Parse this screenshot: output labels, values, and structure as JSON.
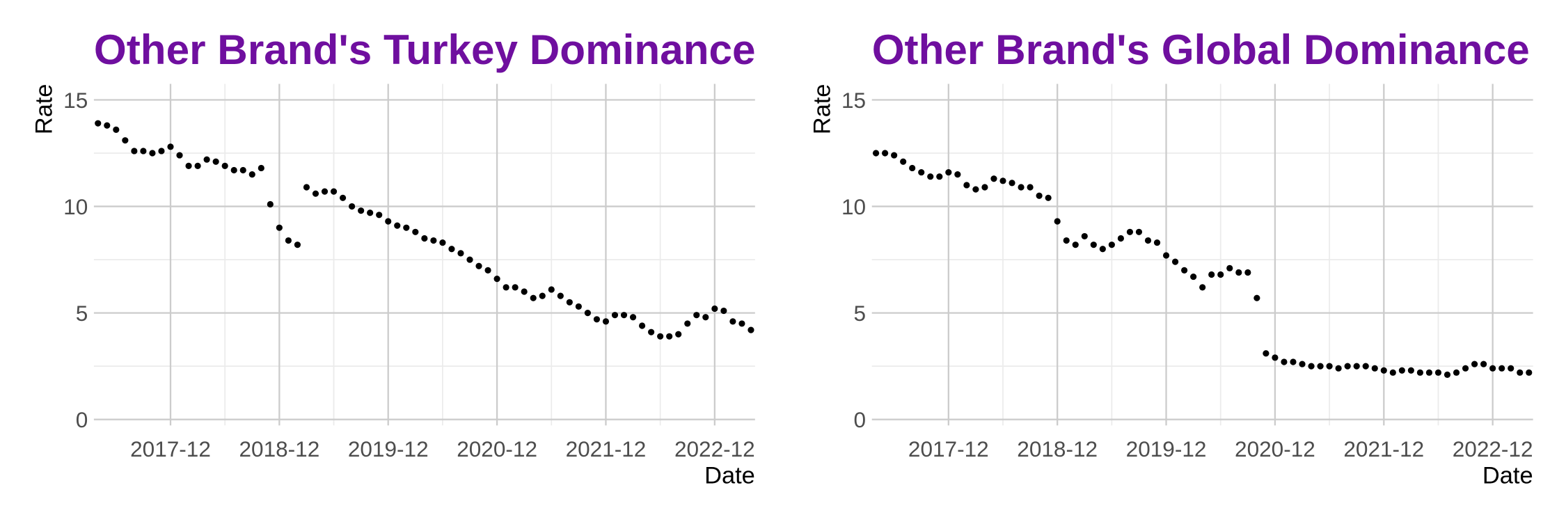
{
  "chart_data": [
    {
      "type": "scatter",
      "title": "Other Brand's Turkey Dominance",
      "x_label": "Date",
      "y_label": "Rate",
      "color": "#000000",
      "grid": true,
      "x": [
        "2017-04",
        "2017-05",
        "2017-06",
        "2017-07",
        "2017-08",
        "2017-09",
        "2017-10",
        "2017-11",
        "2017-12",
        "2018-01",
        "2018-02",
        "2018-03",
        "2018-04",
        "2018-05",
        "2018-06",
        "2018-07",
        "2018-08",
        "2018-09",
        "2018-10",
        "2018-11",
        "2018-12",
        "2019-01",
        "2019-02",
        "2019-03",
        "2019-04",
        "2019-05",
        "2019-06",
        "2019-07",
        "2019-08",
        "2019-09",
        "2019-10",
        "2019-11",
        "2019-12",
        "2020-01",
        "2020-02",
        "2020-03",
        "2020-04",
        "2020-05",
        "2020-06",
        "2020-07",
        "2020-08",
        "2020-09",
        "2020-10",
        "2020-11",
        "2020-12",
        "2021-01",
        "2021-02",
        "2021-03",
        "2021-04",
        "2021-05",
        "2021-06",
        "2021-07",
        "2021-08",
        "2021-09",
        "2021-10",
        "2021-11",
        "2021-12",
        "2022-01",
        "2022-02",
        "2022-03",
        "2022-04",
        "2022-05",
        "2022-06",
        "2022-07",
        "2022-08",
        "2022-09",
        "2022-10",
        "2022-11",
        "2022-12",
        "2023-01",
        "2023-02",
        "2023-03",
        "2023-04"
      ],
      "values": [
        13.9,
        13.8,
        13.6,
        13.1,
        12.6,
        12.6,
        12.5,
        12.6,
        12.8,
        12.4,
        11.9,
        11.9,
        12.2,
        12.1,
        11.9,
        11.7,
        11.7,
        11.5,
        11.8,
        10.1,
        9.0,
        8.4,
        8.2,
        10.9,
        10.6,
        10.7,
        10.7,
        10.4,
        10.0,
        9.8,
        9.7,
        9.6,
        9.3,
        9.1,
        9.0,
        8.8,
        8.5,
        8.4,
        8.3,
        8.0,
        7.8,
        7.5,
        7.2,
        7.0,
        6.6,
        6.2,
        6.2,
        6.0,
        5.7,
        5.8,
        6.1,
        5.8,
        5.5,
        5.3,
        5.0,
        4.7,
        4.6,
        4.9,
        4.9,
        4.8,
        4.4,
        4.1,
        3.9,
        3.9,
        4.0,
        4.5,
        4.9,
        4.8,
        5.2,
        5.1,
        4.6,
        4.5,
        4.2
      ],
      "xlim": [
        "2017-04",
        "2023-04"
      ],
      "xticks": [
        "2017-12",
        "2018-12",
        "2019-12",
        "2020-12",
        "2021-12",
        "2022-12"
      ],
      "ylim": [
        0,
        15
      ],
      "yticks": [
        0,
        5,
        10,
        15
      ]
    },
    {
      "type": "scatter",
      "title": "Other Brand's Global Dominance",
      "x_label": "Date",
      "y_label": "Rate",
      "color": "#000000",
      "grid": true,
      "x": [
        "2017-04",
        "2017-05",
        "2017-06",
        "2017-07",
        "2017-08",
        "2017-09",
        "2017-10",
        "2017-11",
        "2017-12",
        "2018-01",
        "2018-02",
        "2018-03",
        "2018-04",
        "2018-05",
        "2018-06",
        "2018-07",
        "2018-08",
        "2018-09",
        "2018-10",
        "2018-11",
        "2018-12",
        "2019-01",
        "2019-02",
        "2019-03",
        "2019-04",
        "2019-05",
        "2019-06",
        "2019-07",
        "2019-08",
        "2019-09",
        "2019-10",
        "2019-11",
        "2019-12",
        "2020-01",
        "2020-02",
        "2020-03",
        "2020-04",
        "2020-05",
        "2020-06",
        "2020-07",
        "2020-08",
        "2020-09",
        "2020-10",
        "2020-11",
        "2020-12",
        "2021-01",
        "2021-02",
        "2021-03",
        "2021-04",
        "2021-05",
        "2021-06",
        "2021-07",
        "2021-08",
        "2021-09",
        "2021-10",
        "2021-11",
        "2021-12",
        "2022-01",
        "2022-02",
        "2022-03",
        "2022-04",
        "2022-05",
        "2022-06",
        "2022-07",
        "2022-08",
        "2022-09",
        "2022-10",
        "2022-11",
        "2022-12",
        "2023-01",
        "2023-02",
        "2023-03",
        "2023-04"
      ],
      "values": [
        12.5,
        12.5,
        12.4,
        12.1,
        11.8,
        11.6,
        11.4,
        11.4,
        11.6,
        11.5,
        11.0,
        10.8,
        10.9,
        11.3,
        11.2,
        11.1,
        10.9,
        10.9,
        10.5,
        10.4,
        9.3,
        8.4,
        8.2,
        8.6,
        8.2,
        8.0,
        8.2,
        8.5,
        8.8,
        8.8,
        8.4,
        8.3,
        7.7,
        7.4,
        7.0,
        6.7,
        6.2,
        6.8,
        6.8,
        7.1,
        6.9,
        6.9,
        5.7,
        3.1,
        2.9,
        2.7,
        2.7,
        2.6,
        2.5,
        2.5,
        2.5,
        2.4,
        2.5,
        2.5,
        2.5,
        2.4,
        2.3,
        2.2,
        2.3,
        2.3,
        2.2,
        2.2,
        2.2,
        2.1,
        2.2,
        2.4,
        2.6,
        2.6,
        2.4,
        2.4,
        2.4,
        2.2,
        2.2
      ],
      "xlim": [
        "2017-04",
        "2023-04"
      ],
      "xticks": [
        "2017-12",
        "2018-12",
        "2019-12",
        "2020-12",
        "2021-12",
        "2022-12"
      ],
      "ylim": [
        0,
        15
      ],
      "yticks": [
        0,
        5,
        10,
        15
      ]
    }
  ]
}
